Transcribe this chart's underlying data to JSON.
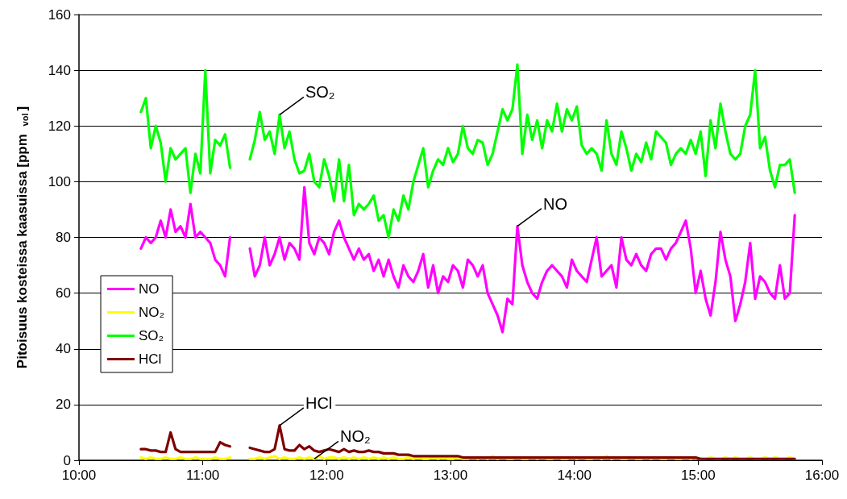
{
  "chart_data": {
    "type": "line",
    "ylabel": "Pitoisuus kosteissa kaasuissa [ppm $_{vol}$]",
    "x": [
      10.5,
      10.54,
      10.58,
      10.62,
      10.66,
      10.7,
      10.74,
      10.78,
      10.82,
      10.86,
      10.9,
      10.94,
      10.98,
      11.02,
      11.06,
      11.1,
      11.14,
      11.18,
      11.22,
      11.26,
      11.3,
      11.34,
      11.38,
      11.42,
      11.46,
      11.5,
      11.54,
      11.58,
      11.62,
      11.66,
      11.7,
      11.74,
      11.78,
      11.82,
      11.86,
      11.9,
      11.94,
      11.98,
      12.02,
      12.06,
      12.1,
      12.14,
      12.18,
      12.22,
      12.26,
      12.3,
      12.34,
      12.38,
      12.42,
      12.46,
      12.5,
      12.54,
      12.58,
      12.62,
      12.66,
      12.7,
      12.74,
      12.78,
      12.82,
      12.86,
      12.9,
      12.94,
      12.98,
      13.02,
      13.06,
      13.1,
      13.14,
      13.18,
      13.22,
      13.26,
      13.3,
      13.34,
      13.38,
      13.42,
      13.46,
      13.5,
      13.54,
      13.58,
      13.62,
      13.66,
      13.7,
      13.74,
      13.78,
      13.82,
      13.86,
      13.9,
      13.94,
      13.98,
      14.02,
      14.06,
      14.1,
      14.14,
      14.18,
      14.22,
      14.26,
      14.3,
      14.34,
      14.38,
      14.42,
      14.46,
      14.5,
      14.54,
      14.58,
      14.62,
      14.66,
      14.7,
      14.74,
      14.78,
      14.82,
      14.86,
      14.9,
      14.94,
      14.98,
      15.02,
      15.06,
      15.1,
      15.14,
      15.18,
      15.22,
      15.26,
      15.3,
      15.34,
      15.38,
      15.42,
      15.46,
      15.5,
      15.54,
      15.58,
      15.62,
      15.66,
      15.7,
      15.74,
      15.78
    ],
    "series": [
      {
        "name": "NO",
        "color": "#ff00ff",
        "values": [
          76,
          80,
          78,
          80,
          86,
          80,
          90,
          82,
          84,
          80,
          92,
          80,
          82,
          80,
          78,
          72,
          70,
          66,
          80,
          null,
          null,
          null,
          76,
          66,
          70,
          80,
          70,
          74,
          80,
          72,
          78,
          76,
          72,
          98,
          78,
          74,
          80,
          78,
          74,
          82,
          86,
          80,
          76,
          72,
          76,
          72,
          74,
          68,
          72,
          66,
          72,
          66,
          62,
          70,
          66,
          64,
          68,
          74,
          62,
          70,
          60,
          66,
          64,
          70,
          68,
          62,
          72,
          70,
          66,
          70,
          60,
          56,
          52,
          46,
          58,
          56,
          84,
          70,
          64,
          60,
          58,
          64,
          68,
          70,
          68,
          66,
          62,
          72,
          68,
          66,
          64,
          72,
          80,
          66,
          68,
          70,
          62,
          80,
          72,
          70,
          74,
          70,
          68,
          74,
          76,
          76,
          72,
          76,
          78,
          82,
          86,
          76,
          60,
          68,
          58,
          52,
          64,
          82,
          72,
          66,
          50,
          56,
          64,
          78,
          58,
          66,
          64,
          60,
          58,
          70,
          58,
          60,
          88
        ]
      },
      {
        "name": "NO₂",
        "color": "#ffff00",
        "values": [
          1,
          0.5,
          1,
          0.5,
          0.5,
          1,
          0.5,
          0.5,
          1,
          0.5,
          0.5,
          1,
          0.5,
          0.5,
          0.5,
          1,
          0.5,
          0.5,
          1,
          null,
          null,
          null,
          0.5,
          0.5,
          1,
          0.5,
          1,
          1.5,
          0.5,
          1,
          0.5,
          0.5,
          1,
          0.5,
          1,
          0.5,
          1.5,
          0.5,
          1,
          1,
          0.5,
          1,
          0.5,
          1,
          0.5,
          1,
          0.5,
          1,
          0.5,
          1,
          0.5,
          1,
          0.5,
          0.5,
          1,
          0.5,
          1,
          0.5,
          0.5,
          1,
          0.5,
          1,
          0.5,
          0.5,
          1,
          0.5,
          0.5,
          1,
          0.5,
          1,
          0.5,
          1.5,
          0.5,
          1,
          0.5,
          0.5,
          1,
          0.5,
          0.5,
          1,
          0.5,
          1,
          0.5,
          0.5,
          1,
          0.5,
          0.5,
          1,
          0.5,
          1,
          0.5,
          0.5,
          1,
          0.5,
          1.5,
          0.5,
          1,
          0.5,
          0.5,
          1,
          0.5,
          0.5,
          1,
          0.5,
          1,
          0.5,
          0.5,
          1,
          0.5,
          0.5,
          1,
          0.5,
          1,
          0.5,
          0.5,
          1,
          0.5,
          0.5,
          1,
          0.5,
          1,
          0.5,
          0.5,
          1,
          0.5,
          0.5,
          1,
          0.5,
          1,
          0.5,
          0.5,
          1,
          0.5
        ]
      },
      {
        "name": "SO₂",
        "color": "#00ff00",
        "values": [
          125,
          130,
          112,
          120,
          114,
          100,
          112,
          108,
          110,
          112,
          96,
          110,
          103,
          140,
          103,
          115,
          113,
          117,
          105,
          null,
          null,
          null,
          108,
          115,
          125,
          115,
          118,
          110,
          124,
          112,
          118,
          108,
          103,
          104,
          110,
          100,
          98,
          108,
          102,
          93,
          108,
          93,
          106,
          88,
          92,
          90,
          92,
          95,
          86,
          88,
          80,
          90,
          86,
          95,
          90,
          100,
          106,
          112,
          98,
          104,
          108,
          106,
          112,
          107,
          110,
          120,
          112,
          110,
          115,
          114,
          106,
          110,
          118,
          126,
          122,
          126,
          142,
          110,
          124,
          115,
          122,
          112,
          122,
          118,
          128,
          118,
          126,
          122,
          127,
          113,
          110,
          112,
          110,
          104,
          122,
          110,
          106,
          118,
          112,
          104,
          110,
          107,
          114,
          108,
          118,
          116,
          114,
          106,
          110,
          112,
          110,
          115,
          110,
          118,
          102,
          122,
          112,
          128,
          118,
          110,
          108,
          110,
          120,
          124,
          140,
          112,
          116,
          104,
          98,
          106,
          106,
          108,
          96
        ]
      },
      {
        "name": "HCl",
        "color": "#800000",
        "values": [
          4,
          4,
          3.5,
          3.5,
          3,
          3,
          10,
          4,
          3,
          3,
          3,
          3,
          3,
          3,
          3,
          3,
          6.5,
          5.5,
          5,
          null,
          null,
          null,
          4.5,
          4,
          3.5,
          3,
          3,
          4,
          12.5,
          4,
          3.5,
          3.5,
          5.5,
          4,
          5,
          3.5,
          3,
          3.5,
          4,
          3.5,
          3,
          4,
          3,
          3.5,
          3,
          3,
          3.5,
          3,
          3,
          2.5,
          2.5,
          2.5,
          2,
          2,
          2,
          1.5,
          1.5,
          1.5,
          1.5,
          1.5,
          1.5,
          1.5,
          1.5,
          1.5,
          1.5,
          1,
          1,
          1,
          1,
          1,
          1,
          1,
          1,
          1,
          1,
          1,
          1,
          1,
          1,
          1,
          1,
          1,
          1,
          1,
          1,
          1,
          1,
          1,
          1,
          1,
          1,
          1,
          1,
          1,
          1,
          1,
          1,
          1,
          1,
          1,
          1,
          1,
          1,
          1,
          1,
          1,
          1,
          1,
          1,
          1,
          1,
          1,
          1,
          0.5,
          0.5,
          0.5,
          0.5,
          0.5,
          0.5,
          0.5,
          0.5,
          0.5,
          0.5,
          0.5,
          0.5,
          0.5,
          0.5,
          0.5,
          0.5,
          0.5,
          0.5,
          0.5,
          0.5
        ]
      }
    ],
    "annotations": [
      {
        "text": "SO₂",
        "x": 11.62,
        "y": 124
      },
      {
        "text": "NO",
        "x": 13.54,
        "y": 84
      },
      {
        "text": "HCl",
        "x": 11.62,
        "y": 12.5
      },
      {
        "text": "NO₂",
        "x": 11.9,
        "y": 0.5
      }
    ],
    "xlim": [
      10,
      16
    ],
    "xticks": [
      {
        "value": 10,
        "label": "10:00"
      },
      {
        "value": 11,
        "label": "11:00"
      },
      {
        "value": 12,
        "label": "12:00"
      },
      {
        "value": 13,
        "label": "13:00"
      },
      {
        "value": 14,
        "label": "14:00"
      },
      {
        "value": 15,
        "label": "15:00"
      },
      {
        "value": 16,
        "label": "16:00"
      }
    ],
    "ylim": [
      0,
      160
    ],
    "yticks": [
      0,
      20,
      40,
      60,
      80,
      100,
      120,
      140,
      160
    ],
    "grid": "y",
    "legend": "left",
    "marker": "none",
    "line_style": "solid"
  }
}
